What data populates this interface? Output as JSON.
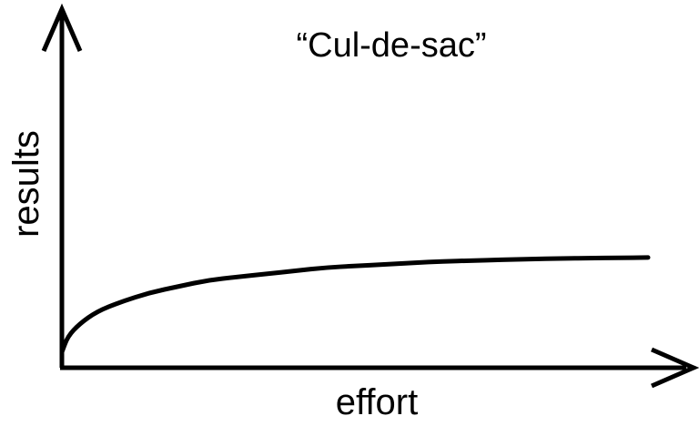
{
  "chart_data": {
    "type": "line",
    "title": "“Cul-de-sac”",
    "xlabel": "effort",
    "ylabel": "results",
    "xlim": [
      0,
      1
    ],
    "ylim": [
      0,
      1
    ],
    "grid": false,
    "series": [
      {
        "line_color": "#000000",
        "points": [
          [
            0.0,
            0.05
          ],
          [
            0.01,
            0.1
          ],
          [
            0.03,
            0.14
          ],
          [
            0.06,
            0.18
          ],
          [
            0.1,
            0.21
          ],
          [
            0.15,
            0.24
          ],
          [
            0.2,
            0.26
          ],
          [
            0.25,
            0.28
          ],
          [
            0.3,
            0.29
          ],
          [
            0.35,
            0.3
          ],
          [
            0.4,
            0.31
          ],
          [
            0.45,
            0.32
          ],
          [
            0.5,
            0.325
          ],
          [
            0.55,
            0.33
          ],
          [
            0.6,
            0.335
          ],
          [
            0.65,
            0.34
          ],
          [
            0.7,
            0.342
          ],
          [
            0.75,
            0.345
          ],
          [
            0.8,
            0.347
          ],
          [
            0.85,
            0.349
          ],
          [
            0.9,
            0.35
          ],
          [
            0.95,
            0.351
          ],
          [
            1.0,
            0.352
          ]
        ]
      }
    ]
  }
}
